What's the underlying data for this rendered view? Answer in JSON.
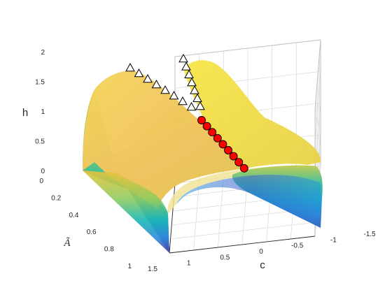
{
  "chart_data": {
    "type": "surface",
    "title": "",
    "zlabel": "h",
    "ylabel": "Ã",
    "xlabel": "c",
    "zlim": [
      0,
      2
    ],
    "ylim": [
      0,
      1
    ],
    "xlim": [
      -1.5,
      1.5
    ],
    "z_ticks": [
      "0",
      "0.5",
      "1",
      "1.5",
      "2"
    ],
    "y_ticks": [
      "0",
      "0.2",
      "0.4",
      "0.6",
      "0.8",
      "1"
    ],
    "x_ticks": [
      "1.5",
      "1",
      "0.5",
      "0",
      "-0.5",
      "-1",
      "-1.5"
    ],
    "grid": true,
    "colormap": [
      "#3e26a8",
      "#2e87f7",
      "#16b8b4",
      "#70cc6e",
      "#e7bd2f",
      "#f9e81b"
    ],
    "series": [
      {
        "name": "",
        "marker": "triangle",
        "color": "#ffffff",
        "points": [
          {
            "c": -0.05,
            "A": 0.05,
            "h": 1.92
          },
          {
            "c": -0.07,
            "A": 0.08,
            "h": 1.72
          },
          {
            "c": -0.09,
            "A": 0.1,
            "h": 1.55
          },
          {
            "c": -0.11,
            "A": 0.13,
            "h": 1.4
          },
          {
            "c": -0.13,
            "A": 0.16,
            "h": 1.27
          },
          {
            "c": -0.14,
            "A": 0.19,
            "h": 1.13
          },
          {
            "c": -0.15,
            "A": 0.22,
            "h": 1.0
          },
          {
            "c": 0.92,
            "A": 0.02,
            "h": 1.9
          },
          {
            "c": 0.86,
            "A": 0.04,
            "h": 1.82
          },
          {
            "c": 0.8,
            "A": 0.06,
            "h": 1.74
          },
          {
            "c": 0.7,
            "A": 0.09,
            "h": 1.62
          },
          {
            "c": 0.58,
            "A": 0.12,
            "h": 1.5
          },
          {
            "c": 0.46,
            "A": 0.15,
            "h": 1.38
          },
          {
            "c": 0.34,
            "A": 0.18,
            "h": 1.26
          },
          {
            "c": 0.22,
            "A": 0.21,
            "h": 1.14
          }
        ]
      },
      {
        "name": "",
        "marker": "circle",
        "color": "#ff0000",
        "points": [
          {
            "c": -0.16,
            "A": 0.25,
            "h": 0.95
          },
          {
            "c": -0.17,
            "A": 0.29,
            "h": 0.9
          },
          {
            "c": -0.19,
            "A": 0.34,
            "h": 0.85
          },
          {
            "c": -0.21,
            "A": 0.39,
            "h": 0.8
          },
          {
            "c": -0.23,
            "A": 0.44,
            "h": 0.75
          },
          {
            "c": -0.26,
            "A": 0.5,
            "h": 0.7
          },
          {
            "c": -0.29,
            "A": 0.56,
            "h": 0.65
          },
          {
            "c": -0.33,
            "A": 0.63,
            "h": 0.6
          },
          {
            "c": -0.37,
            "A": 0.7,
            "h": 0.55
          }
        ]
      }
    ]
  }
}
